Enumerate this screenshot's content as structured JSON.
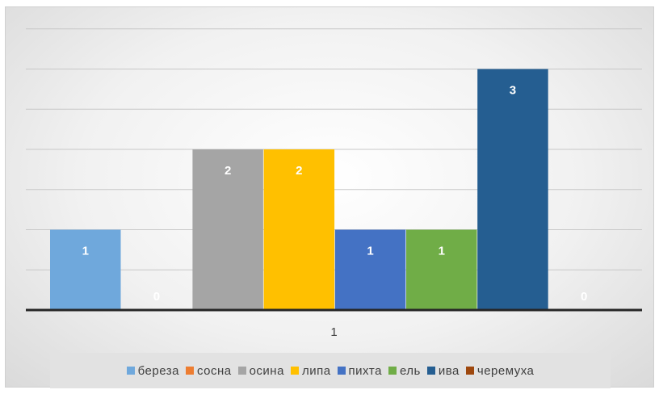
{
  "chart_data": {
    "type": "bar",
    "categories": [
      "1"
    ],
    "series": [
      {
        "name": "береза",
        "values": [
          1
        ],
        "color": "#6fa8dc"
      },
      {
        "name": "сосна",
        "values": [
          0
        ],
        "color": "#ed7d31"
      },
      {
        "name": "осина",
        "values": [
          2
        ],
        "color": "#a5a5a5"
      },
      {
        "name": "липа",
        "values": [
          2
        ],
        "color": "#ffc000"
      },
      {
        "name": "пихта",
        "values": [
          1
        ],
        "color": "#4472c4"
      },
      {
        "name": "ель",
        "values": [
          1
        ],
        "color": "#70ad47"
      },
      {
        "name": "ива",
        "values": [
          3
        ],
        "color": "#255e91"
      },
      {
        "name": "черемуха",
        "values": [
          0
        ],
        "color": "#9e480e"
      }
    ],
    "ylim": [
      0,
      3.5
    ],
    "gridlines": true,
    "data_labels": true,
    "legend_position": "bottom"
  }
}
